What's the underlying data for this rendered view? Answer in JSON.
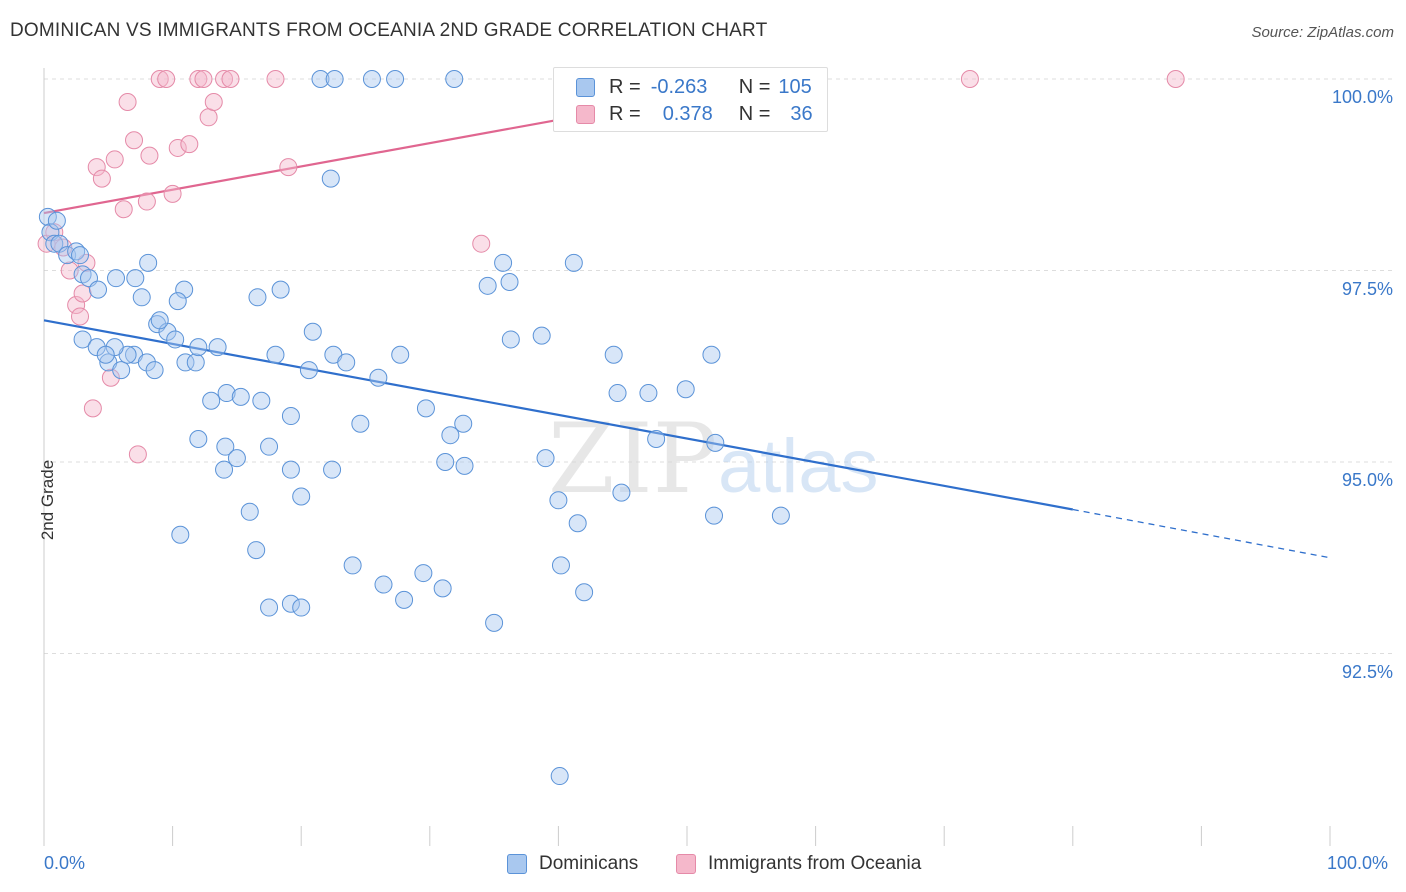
{
  "header": {
    "title": "DOMINICAN VS IMMIGRANTS FROM OCEANIA 2ND GRADE CORRELATION CHART",
    "source": "Source: ZipAtlas.com"
  },
  "legend": {
    "rows": [
      {
        "r_label": "R =",
        "r_value": "-0.263",
        "n_label": "N =",
        "n_value": "105"
      },
      {
        "r_label": "R =",
        "r_value": "0.378",
        "n_label": "N =",
        "n_value": "36"
      }
    ]
  },
  "bottom_legend": {
    "items": [
      "Dominicans",
      "Immigrants from Oceania"
    ]
  },
  "colors": {
    "blue_fill": "#a9c8ef",
    "blue_stroke": "#5b93d8",
    "blue_line": "#2f6fcc",
    "pink_fill": "#f5b8cb",
    "pink_stroke": "#e58aa8",
    "pink_line": "#e06690",
    "tick_text": "#3a78c9",
    "grid": "#dddddd"
  },
  "watermark": {
    "zip": "ZIP",
    "atlas": "atlas"
  },
  "chart_data": {
    "type": "scatter",
    "title": "DOMINICAN VS IMMIGRANTS FROM OCEANIA 2ND GRADE CORRELATION CHART",
    "xlabel": "",
    "ylabel": "2nd Grade",
    "x_tick_labels": [
      "0.0%",
      "100.0%"
    ],
    "y_tick_labels": [
      "100.0%",
      "97.5%",
      "95.0%",
      "92.5%"
    ],
    "xlim": [
      0,
      100
    ],
    "ylim": [
      90.5,
      100.15
    ],
    "grid": true,
    "legend_position": "top-center",
    "series": [
      {
        "name": "Dominicans",
        "color": "#a9c8ef",
        "trend": {
          "x0": 0,
          "y0": 96.85,
          "x1": 80,
          "y1": 94.38,
          "dashed_to_x": 100,
          "dashed_to_y": 93.75
        },
        "points": [
          [
            0.3,
            98.2
          ],
          [
            0.5,
            98.0
          ],
          [
            1.0,
            98.15
          ],
          [
            0.8,
            97.85
          ],
          [
            1.2,
            97.85
          ],
          [
            1.8,
            97.7
          ],
          [
            2.5,
            97.75
          ],
          [
            3.0,
            97.45
          ],
          [
            3.5,
            97.4
          ],
          [
            4.2,
            97.25
          ],
          [
            2.8,
            97.7
          ],
          [
            5.6,
            97.4
          ],
          [
            7.1,
            97.4
          ],
          [
            8.1,
            97.6
          ],
          [
            7.6,
            97.15
          ],
          [
            8.8,
            96.8
          ],
          [
            10.9,
            97.25
          ],
          [
            16.6,
            97.15
          ],
          [
            18.4,
            97.25
          ],
          [
            20.9,
            96.7
          ],
          [
            3.0,
            96.6
          ],
          [
            4.1,
            96.5
          ],
          [
            5.0,
            96.3
          ],
          [
            6.0,
            96.2
          ],
          [
            7.0,
            96.4
          ],
          [
            8.0,
            96.3
          ],
          [
            8.6,
            96.2
          ],
          [
            9.6,
            96.7
          ],
          [
            10.2,
            96.6
          ],
          [
            11.0,
            96.3
          ],
          [
            11.8,
            96.3
          ],
          [
            12.0,
            96.5
          ],
          [
            13.5,
            96.5
          ],
          [
            14.2,
            95.9
          ],
          [
            15.3,
            95.85
          ],
          [
            16.9,
            95.8
          ],
          [
            18.0,
            96.4
          ],
          [
            19.2,
            95.6
          ],
          [
            20.6,
            96.2
          ],
          [
            22.5,
            96.4
          ],
          [
            23.5,
            96.3
          ],
          [
            24.6,
            95.5
          ],
          [
            26.0,
            96.1
          ],
          [
            27.7,
            96.4
          ],
          [
            29.7,
            95.7
          ],
          [
            31.2,
            95.0
          ],
          [
            31.6,
            95.35
          ],
          [
            32.6,
            95.5
          ],
          [
            34.5,
            97.3
          ],
          [
            35.7,
            97.6
          ],
          [
            36.3,
            96.6
          ],
          [
            38.7,
            96.65
          ],
          [
            44.3,
            96.4
          ],
          [
            44.6,
            95.9
          ],
          [
            41.2,
            97.6
          ],
          [
            32.7,
            94.95
          ],
          [
            36.2,
            97.35
          ],
          [
            22.3,
            98.7
          ],
          [
            12.0,
            95.3
          ],
          [
            14.1,
            95.2
          ],
          [
            14.0,
            94.9
          ],
          [
            15.0,
            95.05
          ],
          [
            17.5,
            95.2
          ],
          [
            19.2,
            94.9
          ],
          [
            20.0,
            94.55
          ],
          [
            22.4,
            94.9
          ],
          [
            39.0,
            95.05
          ],
          [
            40.0,
            94.5
          ],
          [
            41.5,
            94.2
          ],
          [
            44.9,
            94.6
          ],
          [
            47.6,
            95.3
          ],
          [
            47.0,
            95.9
          ],
          [
            49.9,
            95.95
          ],
          [
            51.9,
            96.4
          ],
          [
            52.2,
            95.25
          ],
          [
            52.1,
            94.3
          ],
          [
            57.3,
            94.3
          ],
          [
            10.6,
            94.05
          ],
          [
            16.0,
            94.35
          ],
          [
            16.5,
            93.85
          ],
          [
            24.0,
            93.65
          ],
          [
            26.4,
            93.4
          ],
          [
            28.0,
            93.2
          ],
          [
            29.5,
            93.55
          ],
          [
            31.0,
            93.35
          ],
          [
            40.2,
            93.65
          ],
          [
            42.0,
            93.3
          ],
          [
            17.5,
            93.1
          ],
          [
            19.2,
            93.15
          ],
          [
            20.0,
            93.1
          ],
          [
            35.0,
            92.9
          ],
          [
            40.1,
            90.9
          ],
          [
            21.5,
            100.0
          ],
          [
            22.6,
            100.0
          ],
          [
            25.5,
            100.0
          ],
          [
            27.3,
            100.0
          ],
          [
            31.9,
            100.0
          ],
          [
            41.2,
            100.0
          ],
          [
            54.0,
            100.0
          ],
          [
            10.4,
            97.1
          ],
          [
            9.0,
            96.85
          ],
          [
            6.5,
            96.4
          ],
          [
            5.5,
            96.5
          ],
          [
            4.8,
            96.4
          ],
          [
            13.0,
            95.8
          ]
        ]
      },
      {
        "name": "Immigrants from Oceania",
        "color": "#f5b8cb",
        "trend": {
          "x0": 0,
          "y0": 98.25,
          "x1": 57.5,
          "y1": 100.0
        },
        "points": [
          [
            0.2,
            97.85
          ],
          [
            0.8,
            98.0
          ],
          [
            1.5,
            97.8
          ],
          [
            2.0,
            97.5
          ],
          [
            2.5,
            97.05
          ],
          [
            3.0,
            97.2
          ],
          [
            3.3,
            97.6
          ],
          [
            4.1,
            98.85
          ],
          [
            4.5,
            98.7
          ],
          [
            5.5,
            98.95
          ],
          [
            6.2,
            98.3
          ],
          [
            6.5,
            99.7
          ],
          [
            7.0,
            99.2
          ],
          [
            8.0,
            98.4
          ],
          [
            8.2,
            99.0
          ],
          [
            9.0,
            100.0
          ],
          [
            9.5,
            100.0
          ],
          [
            10.0,
            98.5
          ],
          [
            10.4,
            99.1
          ],
          [
            11.3,
            99.15
          ],
          [
            12.0,
            100.0
          ],
          [
            12.4,
            100.0
          ],
          [
            12.8,
            99.5
          ],
          [
            13.2,
            99.7
          ],
          [
            14.0,
            100.0
          ],
          [
            14.5,
            100.0
          ],
          [
            18.0,
            100.0
          ],
          [
            19.0,
            98.85
          ],
          [
            34.0,
            97.85
          ],
          [
            51.0,
            100.0
          ],
          [
            2.8,
            96.9
          ],
          [
            3.8,
            95.7
          ],
          [
            5.2,
            96.1
          ],
          [
            7.3,
            95.1
          ],
          [
            72.0,
            100.0
          ],
          [
            88.0,
            100.0
          ]
        ]
      }
    ]
  }
}
